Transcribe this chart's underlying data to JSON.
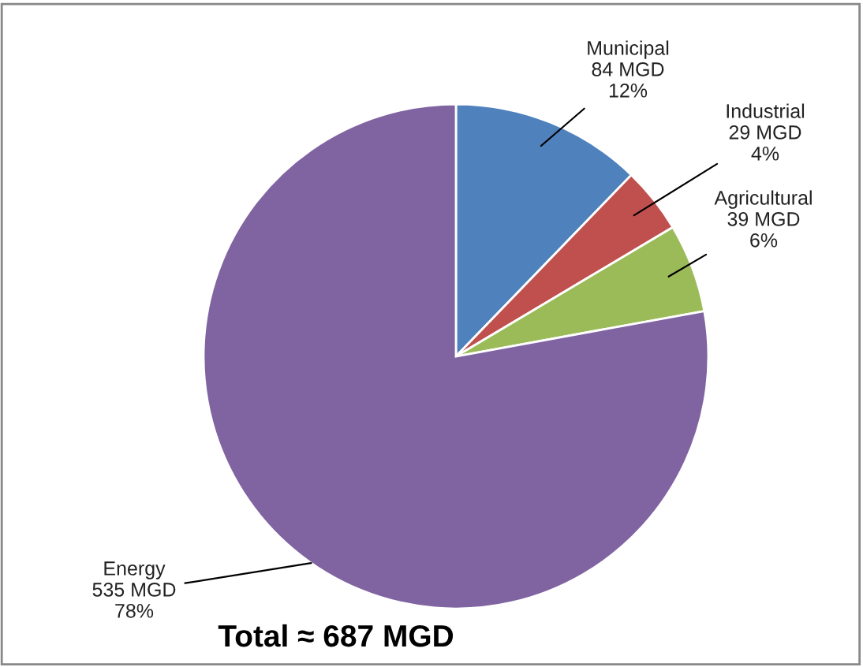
{
  "chart_data": {
    "type": "pie",
    "categories": [
      "Municipal",
      "Industrial",
      "Agricultural",
      "Energy"
    ],
    "values": [
      84,
      29,
      39,
      535
    ],
    "value_labels": [
      "84 MGD\n12%",
      "29 MGD\n4%",
      "39 MGD\n6%",
      "535 MGD\n78%"
    ],
    "colors": [
      "#4f81bd",
      "#c0504d",
      "#9bbb59",
      "#8064a2"
    ],
    "annotations": [
      "Total ≈ 687 MGD"
    ]
  }
}
